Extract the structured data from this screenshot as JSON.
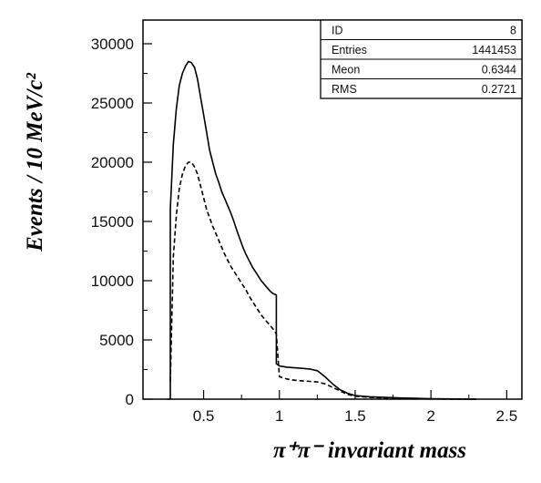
{
  "chart_data": {
    "type": "line",
    "xlabel": "π⁺π⁻ invariant mass",
    "ylabel": "Events / 10 MeV/c²",
    "xlim": [
      0.1,
      2.6
    ],
    "ylim": [
      0,
      32000
    ],
    "x_ticks": [
      {
        "value": 0.5,
        "label": "0.5"
      },
      {
        "value": 1,
        "label": "1"
      },
      {
        "value": 1.5,
        "label": "1.5"
      },
      {
        "value": 2,
        "label": "2"
      },
      {
        "value": 2.5,
        "label": "2.5"
      }
    ],
    "y_ticks": [
      {
        "value": 0,
        "label": "0"
      },
      {
        "value": 5000,
        "label": "5000"
      },
      {
        "value": 10000,
        "label": "10000"
      },
      {
        "value": 15000,
        "label": "15000"
      },
      {
        "value": 20000,
        "label": "20000"
      },
      {
        "value": 25000,
        "label": "25000"
      },
      {
        "value": 30000,
        "label": "30000"
      }
    ],
    "stats_box": [
      {
        "key": "ID",
        "value": "8"
      },
      {
        "key": "Entries",
        "value": "1441453"
      },
      {
        "key": "Meon",
        "value": "0.6344"
      },
      {
        "key": "RMS",
        "value": "0.2721"
      }
    ],
    "series": [
      {
        "style": "solid",
        "color": "#000000",
        "x": [
          0.26,
          0.28,
          0.28,
          0.3,
          0.32,
          0.34,
          0.36,
          0.38,
          0.4,
          0.42,
          0.44,
          0.46,
          0.48,
          0.5,
          0.52,
          0.54,
          0.56,
          0.58,
          0.6,
          0.62,
          0.64,
          0.66,
          0.68,
          0.7,
          0.72,
          0.74,
          0.76,
          0.78,
          0.8,
          0.82,
          0.84,
          0.86,
          0.88,
          0.9,
          0.92,
          0.94,
          0.96,
          0.98,
          0.98,
          1.0,
          1.05,
          1.1,
          1.15,
          1.2,
          1.25,
          1.3,
          1.35,
          1.4,
          1.45,
          1.5,
          1.55,
          1.6,
          1.7,
          1.8,
          1.9,
          2.0,
          2.1,
          2.2,
          2.3
        ],
        "y": [
          0,
          0,
          16000,
          21500,
          24500,
          26500,
          27500,
          28100,
          28500,
          28400,
          28000,
          27000,
          25500,
          24000,
          22500,
          21000,
          20000,
          19000,
          18300,
          17500,
          16900,
          16300,
          15700,
          15000,
          14200,
          13500,
          12800,
          12200,
          11700,
          11200,
          10800,
          10400,
          10000,
          9700,
          9400,
          9100,
          8900,
          8800,
          3000,
          2800,
          2700,
          2650,
          2600,
          2550,
          2400,
          1900,
          1300,
          800,
          500,
          300,
          250,
          200,
          150,
          100,
          70,
          40,
          20,
          10,
          0
        ]
      },
      {
        "style": "dashed",
        "color": "#000000",
        "x": [
          0.28,
          0.3,
          0.32,
          0.34,
          0.36,
          0.38,
          0.4,
          0.42,
          0.44,
          0.46,
          0.48,
          0.5,
          0.52,
          0.54,
          0.56,
          0.58,
          0.6,
          0.62,
          0.64,
          0.66,
          0.68,
          0.7,
          0.72,
          0.74,
          0.76,
          0.78,
          0.8,
          0.82,
          0.84,
          0.86,
          0.88,
          0.9,
          0.92,
          0.94,
          0.96,
          0.98,
          1.0,
          1.05,
          1.1,
          1.15,
          1.2,
          1.25,
          1.3,
          1.35,
          1.4,
          1.45,
          1.5,
          1.55,
          1.6,
          1.7,
          1.8,
          1.9,
          2.0,
          2.1,
          2.2,
          2.3
        ],
        "y": [
          1500,
          12000,
          15500,
          17800,
          19000,
          19700,
          20000,
          20000,
          19600,
          19000,
          18000,
          17000,
          16000,
          15300,
          14600,
          14000,
          13400,
          12800,
          12200,
          11700,
          11200,
          10800,
          10400,
          10000,
          9600,
          9200,
          8700,
          8300,
          7900,
          7500,
          7100,
          6800,
          6500,
          6200,
          5900,
          5500,
          1900,
          1700,
          1600,
          1550,
          1500,
          1450,
          1300,
          1000,
          700,
          400,
          250,
          200,
          150,
          100,
          60,
          40,
          20,
          10,
          0,
          0
        ]
      }
    ]
  }
}
